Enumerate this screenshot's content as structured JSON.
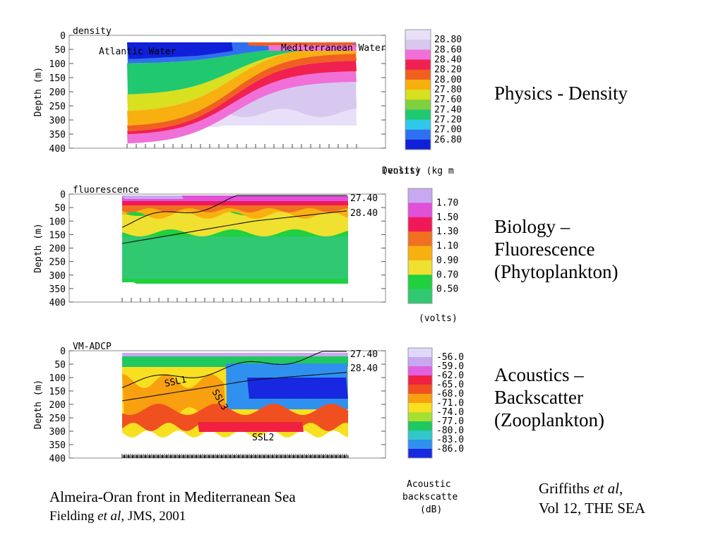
{
  "chart_data": [
    {
      "type": "heatmap",
      "title": "density",
      "ylabel": "Depth (m)",
      "y_ticks": [
        "0",
        "50",
        "100",
        "150",
        "200",
        "250",
        "300",
        "350",
        "400"
      ],
      "ylim": [
        0,
        400
      ],
      "annotations": [
        "Atlantic Water",
        "Mediterranean Water"
      ],
      "colorbar": {
        "labels": [
          "28.80",
          "28.60",
          "28.40",
          "28.20",
          "28.00",
          "27.80",
          "27.60",
          "27.40",
          "27.20",
          "27.00",
          "26.80"
        ],
        "title": "Density (kg m",
        "colors": [
          "#e8e0f8",
          "#d8c8f0",
          "#f070d8",
          "#f02050",
          "#f06020",
          "#f8b010",
          "#d8e020",
          "#80d040",
          "#20c870",
          "#30c8e8",
          "#3070f0",
          "#1020d8"
        ]
      },
      "caption": "Physics - Density"
    },
    {
      "type": "heatmap",
      "title": "fluorescence",
      "ylabel": "Depth (m)",
      "y_ticks": [
        "0",
        "50",
        "100",
        "150",
        "200",
        "250",
        "300",
        "350",
        "400"
      ],
      "ylim": [
        0,
        400
      ],
      "contour_labels": [
        "27.40",
        "28.40"
      ],
      "colorbar": {
        "labels": [
          "1.70",
          "1.50",
          "1.30",
          "1.10",
          "0.90",
          "0.70",
          "0.50"
        ],
        "title": "(volts)",
        "colors": [
          "#c8a8f0",
          "#e050d8",
          "#f01858",
          "#f07020",
          "#f8b010",
          "#f0e030",
          "#20d040",
          "#30c870"
        ]
      },
      "caption_lines": [
        "Biology –",
        "Fluorescence",
        "(Phytoplankton)"
      ]
    },
    {
      "type": "heatmap",
      "title": "VM-ADCP",
      "ylabel": "Depth (m)",
      "y_ticks": [
        "0",
        "50",
        "100",
        "150",
        "200",
        "250",
        "300",
        "350",
        "400"
      ],
      "ylim": [
        0,
        400
      ],
      "contour_labels": [
        "27.40",
        "28.40"
      ],
      "layer_labels": [
        "SSL1",
        "SSL3",
        "SSL2"
      ],
      "colorbar": {
        "labels": [
          "-56.0",
          "-59.0",
          "-62.0",
          "-65.0",
          "-68.0",
          "-71.0",
          "-74.0",
          "-77.0",
          "-80.0",
          "-83.0",
          "-86.0"
        ],
        "title_lines": [
          "Acoustic",
          "backscatte",
          "(dB)"
        ],
        "colors": [
          "#e0d8f8",
          "#c8a8f0",
          "#e060e0",
          "#f02040",
          "#f05020",
          "#f8a010",
          "#f8e020",
          "#a8e030",
          "#20c860",
          "#30c8c8",
          "#3090f0",
          "#1828e0"
        ]
      },
      "caption_lines": [
        "Acoustics –",
        "Backscatter",
        "(Zooplankton)"
      ]
    }
  ],
  "footer": {
    "left_line1": "Almeira-Oran front in Mediterranean Sea",
    "left_line2_author": "Fielding ",
    "left_line2_etal": "et al",
    "left_line2_rest": ", JMS, 2001",
    "right_line1_author": "Griffiths ",
    "right_line1_etal": "et al",
    "right_line1_rest": ",",
    "right_line2": "Vol 12, THE SEA"
  }
}
